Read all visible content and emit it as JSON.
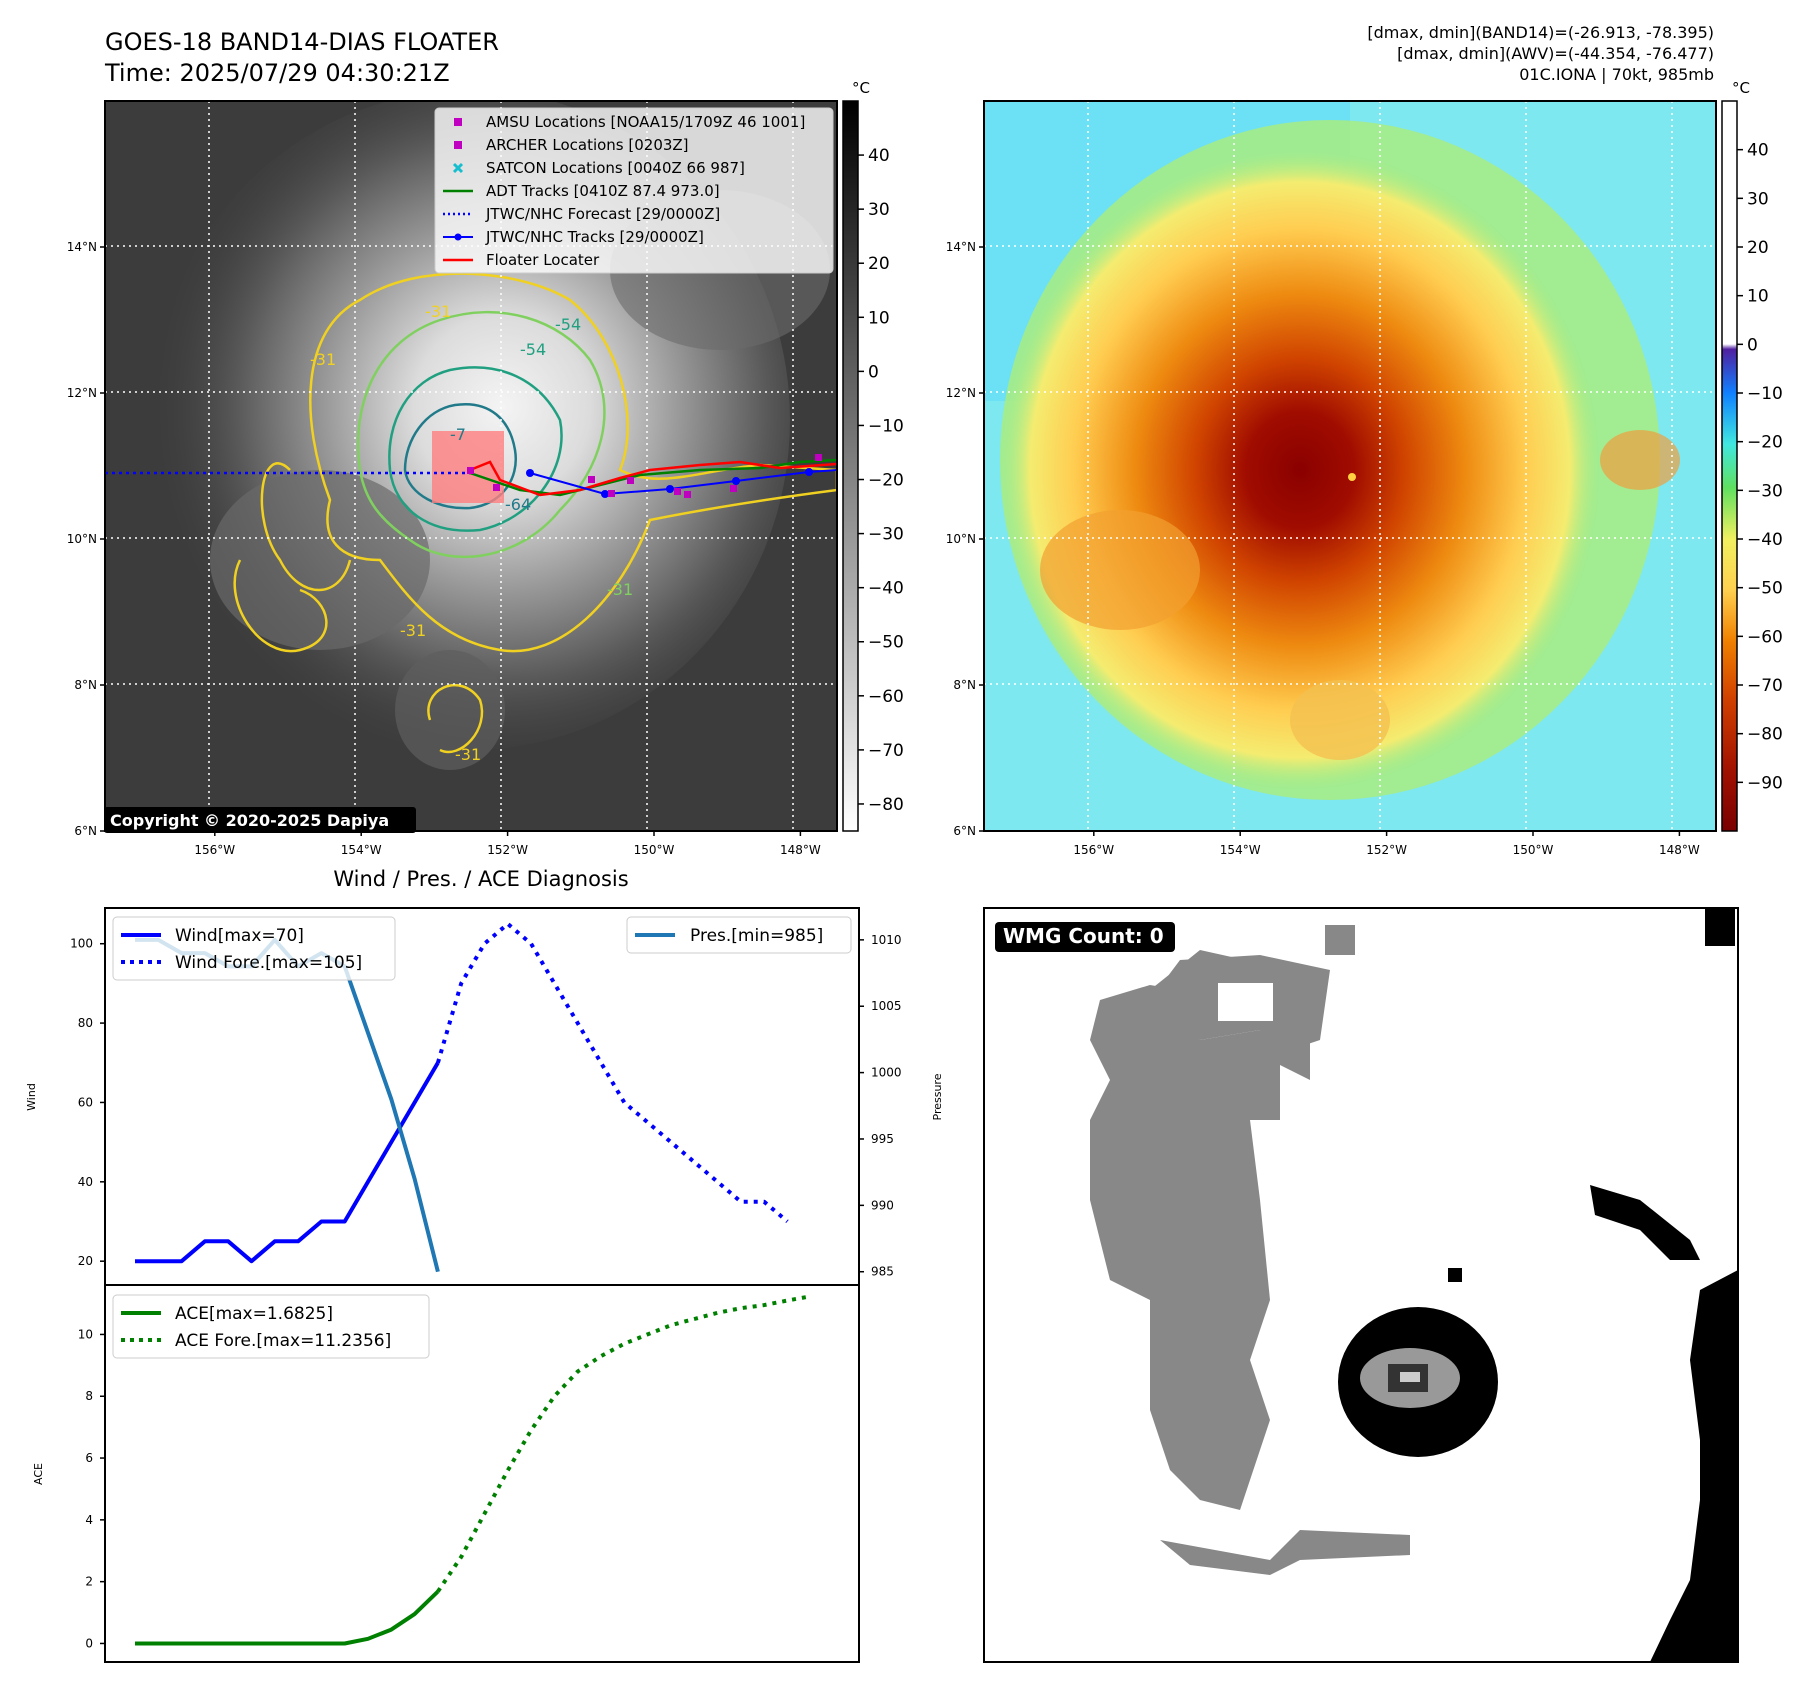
{
  "header": {
    "title_line1": "GOES-18 BAND14-DIAS FLOATER",
    "title_line2": "Time: 2025/07/29 04:30:21Z",
    "info_line1": "[dmax, dmin](BAND14)=(-26.913, -78.395)",
    "info_line2": "[dmax, dmin](AWV)=(-44.354, -76.477)",
    "info_line3": "01C.IONA | 70kt, 985mb"
  },
  "maps": {
    "lat_labels": [
      "14°N",
      "12°N",
      "10°N",
      "8°N",
      "6°N"
    ],
    "lat_values": [
      14,
      12,
      10,
      8,
      6
    ],
    "lon_labels": [
      "156°W",
      "154°W",
      "152°W",
      "150°W",
      "148°W"
    ],
    "lon_values": [
      -156,
      -154,
      -152,
      -150,
      -148
    ],
    "lon_range": [
      -157.5,
      -147.5
    ],
    "lat_range": [
      6,
      16
    ],
    "copyright": "Copyright © 2020-2025 Dapiya",
    "contour_labels": [
      "-31",
      "-54",
      "-54",
      "-64",
      "-7",
      "-31",
      "-31",
      "-31",
      "-31"
    ]
  },
  "legend": {
    "items": [
      {
        "label": "AMSU Locations [NOAA15/1709Z 46 1001]",
        "color": "#c000c0",
        "kind": "square-marker"
      },
      {
        "label": "ARCHER Locations [0203Z]",
        "color": "#c000c0",
        "kind": "square-marker"
      },
      {
        "label": "SATCON Locations [0040Z 66 987]",
        "color": "#17becf",
        "kind": "x-marker"
      },
      {
        "label": "ADT Tracks [0410Z 87.4 973.0]",
        "color": "#008000",
        "kind": "line"
      },
      {
        "label": "JTWC/NHC Forecast [29/0000Z]",
        "color": "#0000ff",
        "kind": "dotted"
      },
      {
        "label": "JTWC/NHC Tracks [29/0000Z]",
        "color": "#0000ff",
        "kind": "line-marker"
      },
      {
        "label": "Floater Locater",
        "color": "#ff0000",
        "kind": "line"
      }
    ]
  },
  "colorbars": {
    "unit": "°C",
    "left_ticks": [
      "40",
      "30",
      "20",
      "10",
      "0",
      "−10",
      "−20",
      "−30",
      "−40",
      "−50",
      "−60",
      "−70",
      "−80"
    ],
    "left_values": [
      40,
      30,
      20,
      10,
      0,
      -10,
      -20,
      -30,
      -40,
      -50,
      -60,
      -70,
      -80
    ],
    "left_range": [
      -85,
      50
    ],
    "right_ticks": [
      "40",
      "30",
      "20",
      "10",
      "0",
      "−10",
      "−20",
      "−30",
      "−40",
      "−50",
      "−60",
      "−70",
      "−80",
      "−90"
    ],
    "right_values": [
      40,
      30,
      20,
      10,
      0,
      -10,
      -20,
      -30,
      -40,
      -50,
      -60,
      -70,
      -80,
      -90
    ],
    "right_range": [
      -100,
      50
    ]
  },
  "diagnosis": {
    "title": "Wind / Pres. / ACE Diagnosis"
  },
  "wmg": {
    "label": "WMG Count: 0"
  },
  "chart_data": [
    {
      "type": "line",
      "title": "Wind / Pres. / ACE Diagnosis",
      "ylabel": "Wind",
      "ylabel_right": "Pressure",
      "ylim": [
        14,
        109
      ],
      "ylim_right": [
        984,
        1012.4
      ],
      "yticks": [
        20,
        40,
        60,
        80,
        100
      ],
      "yticks_right": [
        985,
        990,
        995,
        1000,
        1005,
        1010
      ],
      "x_range": [
        0,
        30
      ],
      "series": [
        {
          "name": "Wind[max=70]",
          "axis": "left",
          "color": "#0000ff",
          "style": "solid",
          "x": [
            0,
            1,
            2,
            3,
            4,
            5,
            6,
            7,
            8,
            9,
            10,
            11,
            12,
            13
          ],
          "values": [
            20,
            20,
            20,
            25,
            25,
            20,
            25,
            25,
            30,
            30,
            40,
            50,
            60,
            70
          ]
        },
        {
          "name": "Wind Fore.[max=105]",
          "axis": "left",
          "color": "#0000ff",
          "style": "dotted",
          "x": [
            13,
            14,
            15,
            16,
            17,
            18,
            19,
            20,
            21,
            22,
            23,
            24,
            25,
            26,
            27,
            28
          ],
          "values": [
            70,
            90,
            100,
            105,
            100,
            90,
            80,
            70,
            60,
            55,
            50,
            45,
            40,
            35,
            35,
            30
          ]
        },
        {
          "name": "Pres.[min=985]",
          "axis": "right",
          "color": "#1f77b4",
          "style": "solid",
          "x": [
            0,
            1,
            2,
            3,
            4,
            5,
            6,
            7,
            8,
            9,
            10,
            11,
            12,
            13
          ],
          "values": [
            1010,
            1010,
            1009,
            1009,
            1008,
            1008,
            1010,
            1008,
            1009,
            1008,
            1003,
            998,
            992,
            985
          ]
        }
      ]
    },
    {
      "type": "line",
      "ylabel": "ACE",
      "ylim": [
        -0.6,
        11.6
      ],
      "yticks": [
        0,
        2,
        4,
        6,
        8,
        10
      ],
      "x_range": [
        0,
        30
      ],
      "series": [
        {
          "name": "ACE[max=1.6825]",
          "color": "#008000",
          "style": "solid",
          "x": [
            0,
            1,
            2,
            3,
            4,
            5,
            6,
            7,
            8,
            9,
            10,
            11,
            12,
            13
          ],
          "values": [
            0,
            0,
            0,
            0,
            0,
            0,
            0,
            0,
            0,
            0,
            0.15,
            0.45,
            0.95,
            1.6825
          ]
        },
        {
          "name": "ACE Fore.[max=11.2356]",
          "color": "#008000",
          "style": "dotted",
          "x": [
            13,
            14,
            15,
            16,
            17,
            18,
            19,
            20,
            21,
            22,
            23,
            24,
            25,
            26,
            27,
            28,
            29
          ],
          "values": [
            1.6825,
            2.8,
            4.2,
            5.6,
            6.9,
            8.0,
            8.8,
            9.3,
            9.7,
            10.0,
            10.3,
            10.5,
            10.7,
            10.85,
            10.95,
            11.1,
            11.2356
          ]
        }
      ]
    }
  ]
}
